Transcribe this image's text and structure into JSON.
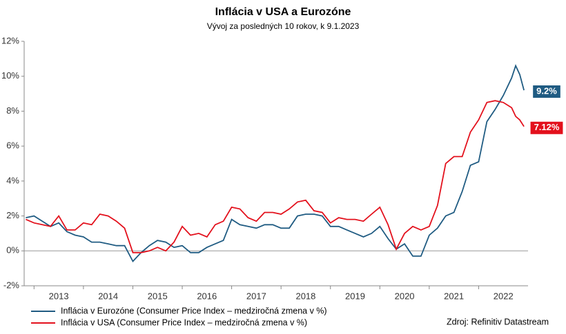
{
  "chart_data": {
    "type": "line",
    "title": "Inflácia v USA a Eurozóne",
    "subtitle": "Vývoj za posledných 10 rokov, k 9.1.2023",
    "source": "Zdroj: Refinitiv Datastream",
    "x": [
      2012.833,
      2013.0,
      2013.167,
      2013.333,
      2013.5,
      2013.667,
      2013.833,
      2014.0,
      2014.167,
      2014.333,
      2014.5,
      2014.667,
      2014.833,
      2015.0,
      2015.167,
      2015.333,
      2015.5,
      2015.667,
      2015.833,
      2016.0,
      2016.167,
      2016.333,
      2016.5,
      2016.667,
      2016.833,
      2017.0,
      2017.167,
      2017.333,
      2017.5,
      2017.667,
      2017.833,
      2018.0,
      2018.167,
      2018.333,
      2018.5,
      2018.667,
      2018.833,
      2019.0,
      2019.167,
      2019.333,
      2019.5,
      2019.667,
      2019.833,
      2020.0,
      2020.167,
      2020.333,
      2020.5,
      2020.667,
      2020.833,
      2021.0,
      2021.167,
      2021.333,
      2021.5,
      2021.667,
      2021.833,
      2022.0,
      2022.167,
      2022.333,
      2022.5,
      2022.667,
      2022.75,
      2022.833,
      2022.917
    ],
    "series": [
      {
        "name": "Inflácia v Eurozóne (Consumer Price Index – medziročná zmena v %)",
        "color": "#1f5b82",
        "values": [
          1.9,
          2.0,
          1.7,
          1.4,
          1.6,
          1.1,
          0.9,
          0.8,
          0.5,
          0.5,
          0.4,
          0.3,
          0.3,
          -0.6,
          -0.1,
          0.3,
          0.6,
          0.5,
          0.2,
          0.3,
          -0.1,
          -0.1,
          0.2,
          0.4,
          0.6,
          1.8,
          1.5,
          1.4,
          1.3,
          1.5,
          1.5,
          1.3,
          1.3,
          2.0,
          2.1,
          2.1,
          2.0,
          1.4,
          1.4,
          1.2,
          1.0,
          0.8,
          1.0,
          1.4,
          0.7,
          0.1,
          0.4,
          -0.3,
          -0.3,
          0.9,
          1.3,
          2.0,
          2.2,
          3.4,
          4.9,
          5.1,
          7.4,
          8.1,
          8.9,
          9.9,
          10.6,
          10.1,
          9.2
        ],
        "value_labels": [
          null,
          null,
          null,
          null,
          null,
          null,
          null,
          null,
          null,
          null,
          null,
          null,
          null,
          null,
          null,
          null,
          null,
          null,
          null,
          null,
          null,
          null,
          null,
          null,
          null,
          null,
          null,
          null,
          null,
          null,
          null,
          null,
          null,
          null,
          null,
          null,
          null,
          null,
          null,
          null,
          null,
          null,
          null,
          null,
          null,
          null,
          null,
          null,
          null,
          null,
          null,
          null,
          null,
          null,
          null,
          null,
          null,
          null,
          null,
          null,
          null,
          null,
          "9.2%"
        ]
      },
      {
        "name": "Inflácia v USA (Consumer Price Index – medziročná zmena v %)",
        "color": "#e3101c",
        "values": [
          1.8,
          1.6,
          1.5,
          1.4,
          2.0,
          1.2,
          1.2,
          1.6,
          1.5,
          2.1,
          2.0,
          1.7,
          1.3,
          -0.1,
          -0.1,
          0.0,
          0.2,
          0.0,
          0.5,
          1.4,
          0.9,
          1.0,
          0.8,
          1.5,
          1.7,
          2.5,
          2.4,
          1.9,
          1.7,
          2.2,
          2.2,
          2.1,
          2.4,
          2.8,
          2.9,
          2.3,
          2.2,
          1.6,
          1.9,
          1.8,
          1.8,
          1.7,
          2.1,
          2.5,
          1.5,
          0.1,
          1.0,
          1.4,
          1.2,
          1.4,
          2.6,
          5.0,
          5.4,
          5.4,
          6.8,
          7.5,
          8.5,
          8.6,
          8.5,
          8.2,
          7.7,
          7.5,
          7.12
        ],
        "value_labels": [
          null,
          null,
          null,
          null,
          null,
          null,
          null,
          null,
          null,
          null,
          null,
          null,
          null,
          null,
          null,
          null,
          null,
          null,
          null,
          null,
          null,
          null,
          null,
          null,
          null,
          null,
          null,
          null,
          null,
          null,
          null,
          null,
          null,
          null,
          null,
          null,
          null,
          null,
          null,
          null,
          null,
          null,
          null,
          null,
          null,
          null,
          null,
          null,
          null,
          null,
          null,
          null,
          null,
          null,
          null,
          null,
          null,
          null,
          null,
          null,
          null,
          null,
          "7.12%"
        ]
      }
    ],
    "xlim": [
      2012.8,
      2023.0
    ],
    "xticks": [
      {
        "value": 2013,
        "label": "2013"
      },
      {
        "value": 2014,
        "label": "2014"
      },
      {
        "value": 2015,
        "label": "2015"
      },
      {
        "value": 2016,
        "label": "2016"
      },
      {
        "value": 2017,
        "label": "2017"
      },
      {
        "value": 2018,
        "label": "2018"
      },
      {
        "value": 2019,
        "label": "2019"
      },
      {
        "value": 2020,
        "label": "2020"
      },
      {
        "value": 2021,
        "label": "2021"
      },
      {
        "value": 2022,
        "label": "2022"
      }
    ],
    "ylim": [
      -2,
      12
    ],
    "yticks": [
      {
        "value": -2,
        "label": "-2%"
      },
      {
        "value": 0,
        "label": "0%"
      },
      {
        "value": 2,
        "label": "2%"
      },
      {
        "value": 4,
        "label": "4%"
      },
      {
        "value": 6,
        "label": "6%"
      },
      {
        "value": 8,
        "label": "8%"
      },
      {
        "value": 10,
        "label": "10%"
      },
      {
        "value": 12,
        "label": "12%"
      }
    ],
    "grid": false
  }
}
